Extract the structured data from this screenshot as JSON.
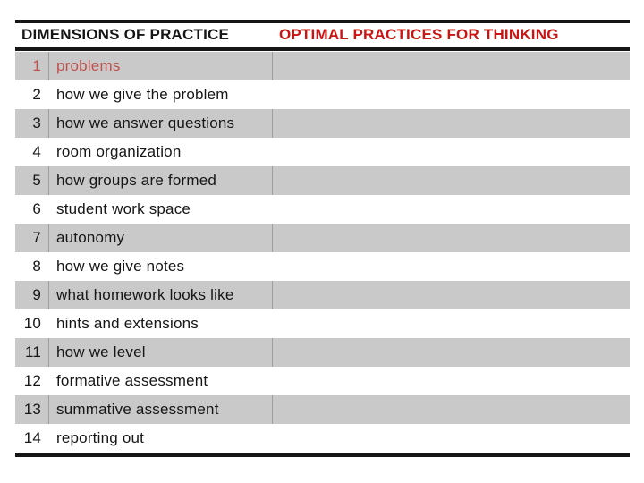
{
  "slide": {
    "header": {
      "dimensions": "DIMENSIONS OF PRACTICE",
      "optimal": "OPTIMAL PRACTICES FOR THINKING"
    },
    "rows": [
      {
        "num": "1",
        "label": "problems"
      },
      {
        "num": "2",
        "label": "how we give the problem"
      },
      {
        "num": "3",
        "label": "how we answer questions"
      },
      {
        "num": "4",
        "label": "room organization"
      },
      {
        "num": "5",
        "label": "how groups are formed"
      },
      {
        "num": "6",
        "label": "student work space"
      },
      {
        "num": "7",
        "label": "autonomy"
      },
      {
        "num": "8",
        "label": "how we give notes"
      },
      {
        "num": "9",
        "label": "what homework looks like"
      },
      {
        "num": "10",
        "label": "hints and extensions"
      },
      {
        "num": "11",
        "label": "how we level"
      },
      {
        "num": "12",
        "label": "formative assessment"
      },
      {
        "num": "13",
        "label": "summative assessment"
      },
      {
        "num": "14",
        "label": "reporting out"
      }
    ],
    "highlight_row": 1,
    "colors": {
      "header_red": "#cc1414",
      "highlight_red": "#c0504d",
      "row_gray": "#c9c9c9",
      "separator_gray": "#9e9e9e",
      "ink_black": "#161616"
    }
  }
}
